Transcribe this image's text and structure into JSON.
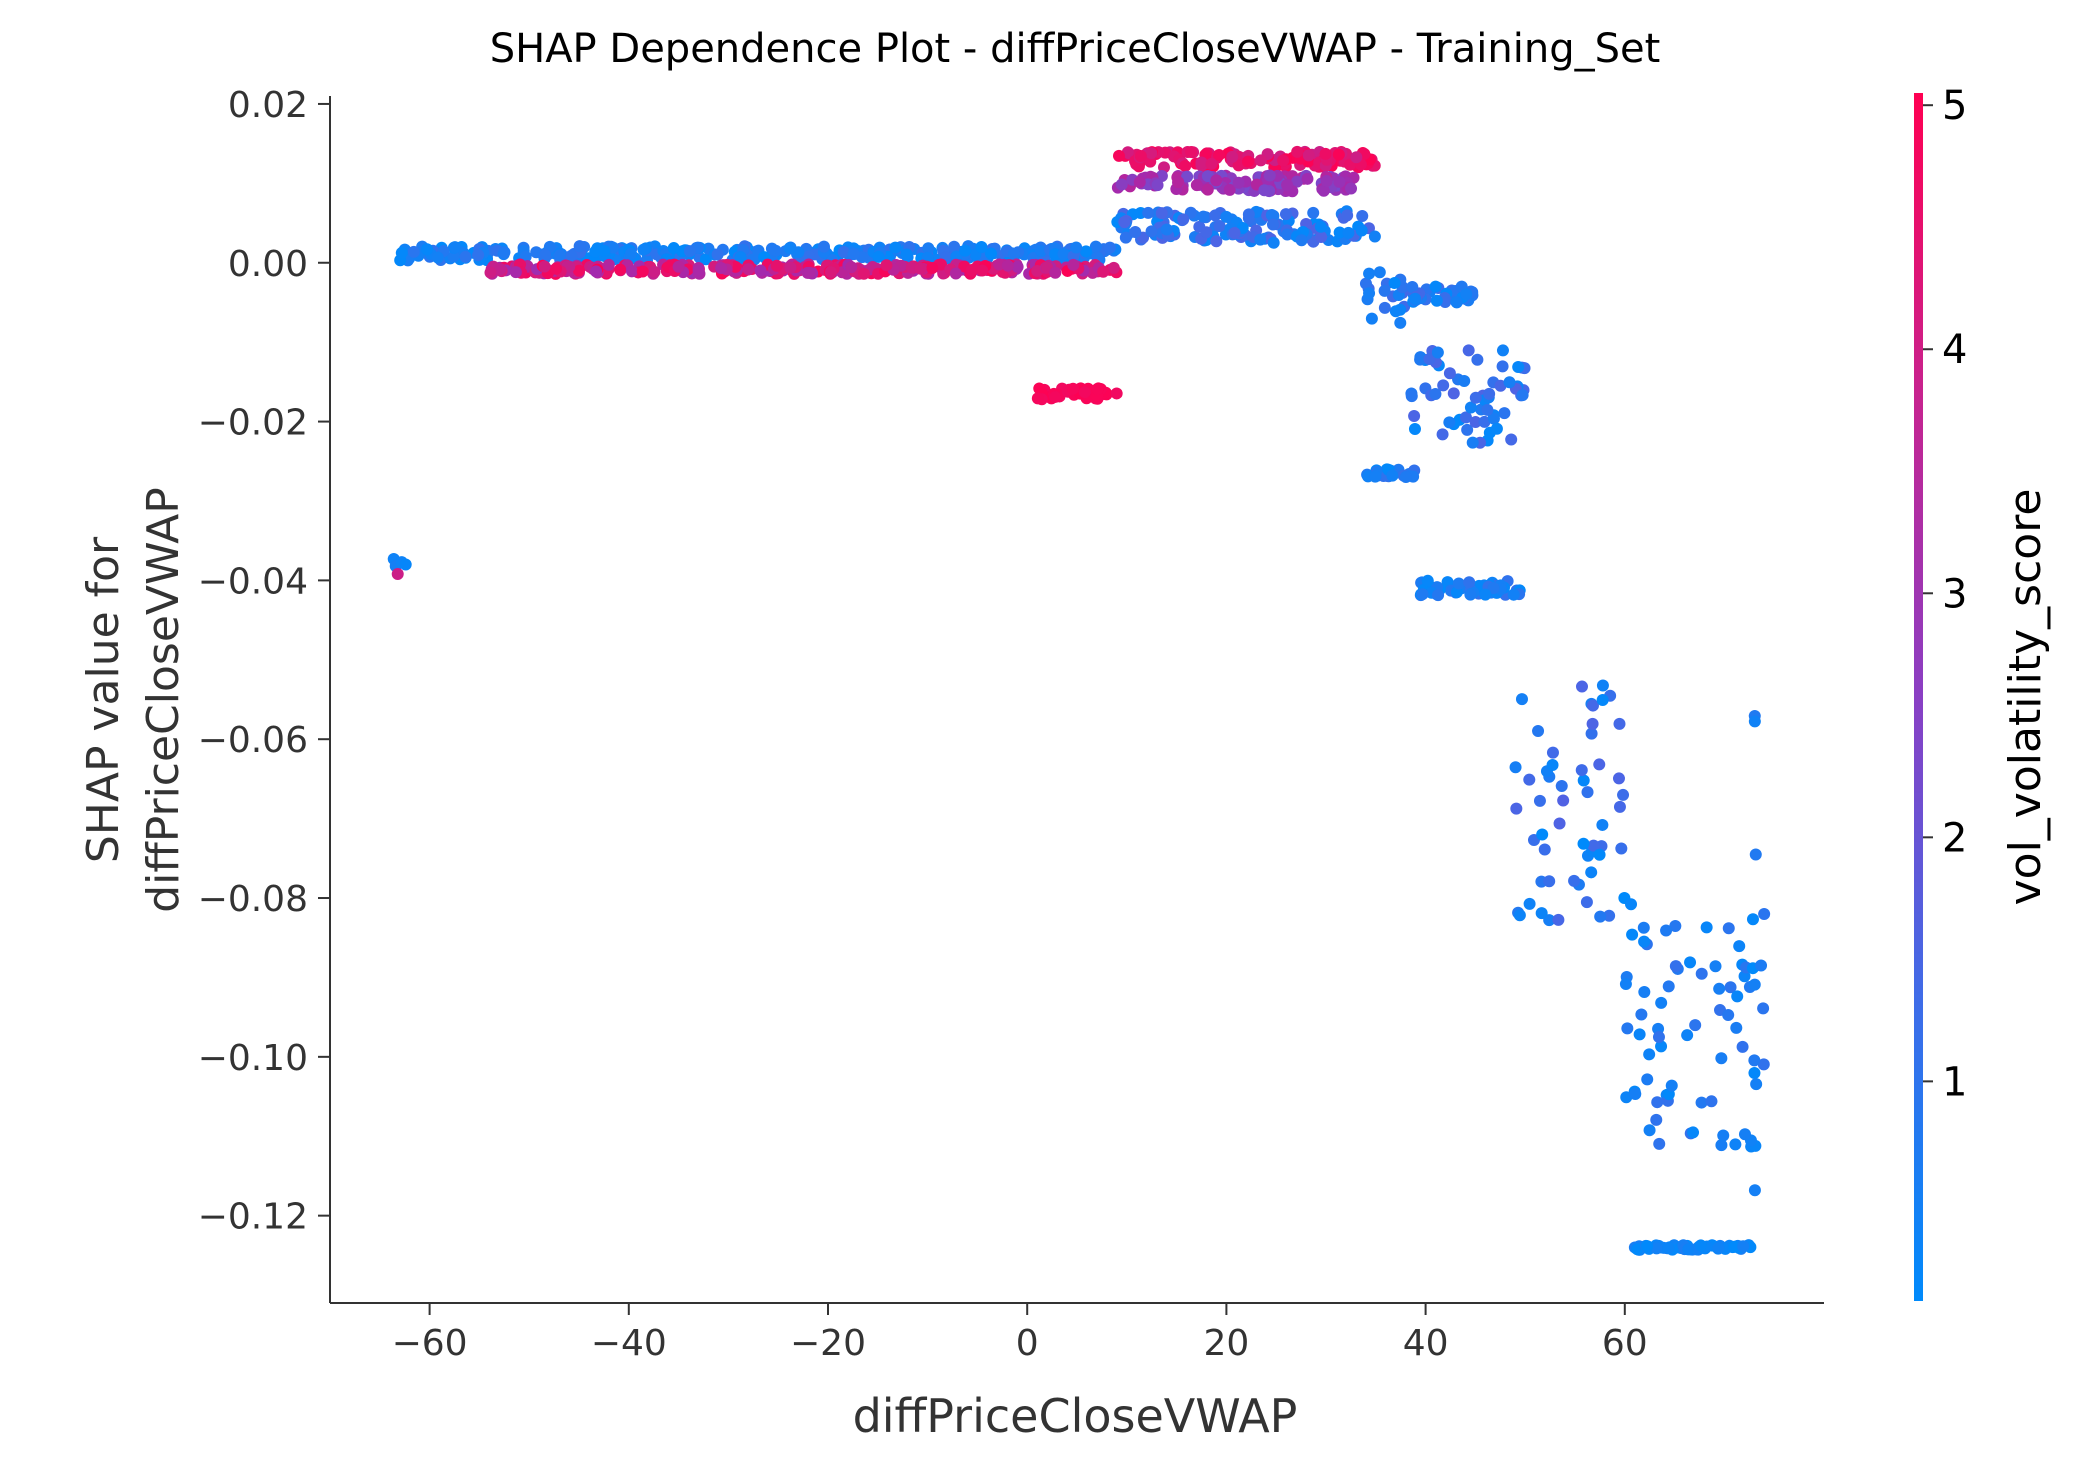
{
  "chart_data": {
    "type": "scatter",
    "title": "SHAP Dependence Plot - diffPriceCloseVWAP - Training_Set",
    "xlabel": "diffPriceCloseVWAP",
    "ylabel_lines": [
      "SHAP value for",
      "diffPriceCloseVWAP"
    ],
    "xlim": [
      -70,
      80
    ],
    "ylim": [
      -0.131,
      0.021
    ],
    "x_ticks": [
      -60,
      -40,
      -20,
      0,
      20,
      40,
      60
    ],
    "x_tick_labels": [
      "−60",
      "−40",
      "−20",
      "0",
      "20",
      "40",
      "60"
    ],
    "y_ticks": [
      0.02,
      0.0,
      -0.02,
      -0.04,
      -0.06,
      -0.08,
      -0.1,
      -0.12
    ],
    "y_tick_labels": [
      "0.02",
      "0.00",
      "−0.02",
      "−0.04",
      "−0.06",
      "−0.08",
      "−0.10",
      "−0.12"
    ],
    "grid": false,
    "colorbar": {
      "label": "vol_volatility_score",
      "min": 0.1,
      "max": 5.05,
      "ticks": [
        1,
        2,
        3,
        4,
        5
      ],
      "tick_labels": [
        "1",
        "2",
        "3",
        "4",
        "5"
      ],
      "colors": [
        "#008afb",
        "#5c5de0",
        "#a32aae",
        "#d81a7a",
        "#ff0052"
      ]
    },
    "series": [
      {
        "group": "left-isolated",
        "x": [
          -63.6,
          -63.4,
          -63.2,
          -62.8,
          -62.4
        ],
        "y": [
          -0.0373,
          -0.0382,
          -0.0392,
          -0.0377,
          -0.038
        ],
        "c": [
          0.3,
          0.4,
          3.5,
          0.3,
          0.2
        ]
      },
      {
        "group": "flat-low",
        "x_range": [
          -63,
          9
        ],
        "y_center": 0.0012,
        "y_spread": 0.0009,
        "c_low": 0.1,
        "c_high": 0.8
      },
      {
        "group": "flat-high",
        "x_range": [
          -54,
          9
        ],
        "y_center": -0.0008,
        "y_spread": 0.0006,
        "c_low": 2.5,
        "c_high": 5.0
      },
      {
        "group": "negative-cluster",
        "x_range": [
          1,
          9
        ],
        "y_center": -0.0165,
        "y_spread": 0.0007,
        "c_low": 4.6,
        "c_high": 5.0
      },
      {
        "group": "upper-step-high",
        "x_range": [
          9,
          35
        ],
        "y_center": 0.013,
        "y_spread": 0.001,
        "c_low": 3.5,
        "c_high": 5.0
      },
      {
        "group": "upper-step-mid",
        "x_range": [
          9,
          33
        ],
        "y_center": 0.01,
        "y_spread": 0.001,
        "c_low": 1.8,
        "c_high": 3.0
      },
      {
        "group": "upper-step-low",
        "x_range": [
          9,
          35
        ],
        "y_center": 0.0045,
        "y_spread": 0.002,
        "c_low": 0.1,
        "c_high": 1.2
      },
      {
        "group": "step-34-38",
        "x_range": [
          34,
          38
        ],
        "y_center": -0.004,
        "y_spread": 0.004,
        "c_low": 0.1,
        "c_high": 1.0
      },
      {
        "group": "step-38-45",
        "x_range": [
          38,
          45
        ],
        "y_center": -0.004,
        "y_spread": 0.001,
        "c_low": 0.1,
        "c_high": 1.0
      },
      {
        "group": "step-38-50",
        "x_range": [
          38,
          50
        ],
        "y_center": -0.017,
        "y_spread": 0.006,
        "c_low": 0.1,
        "c_high": 1.2
      },
      {
        "group": "step-34-39-low",
        "x_range": [
          34,
          39
        ],
        "y_center": -0.0265,
        "y_spread": 0.0005,
        "c_low": 0.1,
        "c_high": 0.8
      },
      {
        "group": "step-39-50",
        "x_range": [
          39,
          50
        ],
        "y_center": -0.041,
        "y_spread": 0.001,
        "c_low": 0.1,
        "c_high": 0.8
      },
      {
        "group": "step-49-60",
        "x_range": [
          49,
          60
        ],
        "y_center": -0.068,
        "y_spread": 0.015,
        "c_low": 0.1,
        "c_high": 1.2
      },
      {
        "group": "step-60-74",
        "x_range": [
          60,
          74
        ],
        "y_center": -0.096,
        "y_spread": 0.016,
        "c_low": 0.1,
        "c_high": 0.8
      },
      {
        "group": "bottom-row",
        "x_range": [
          61,
          73
        ],
        "y_center": -0.124,
        "y_spread": 0.0003,
        "c_low": 0.1,
        "c_high": 0.5
      },
      {
        "group": "right-column",
        "x_range": [
          73,
          73.2
        ],
        "y_center": -0.09,
        "y_spread": 0.034,
        "c_low": 0.1,
        "c_high": 0.6
      }
    ]
  }
}
